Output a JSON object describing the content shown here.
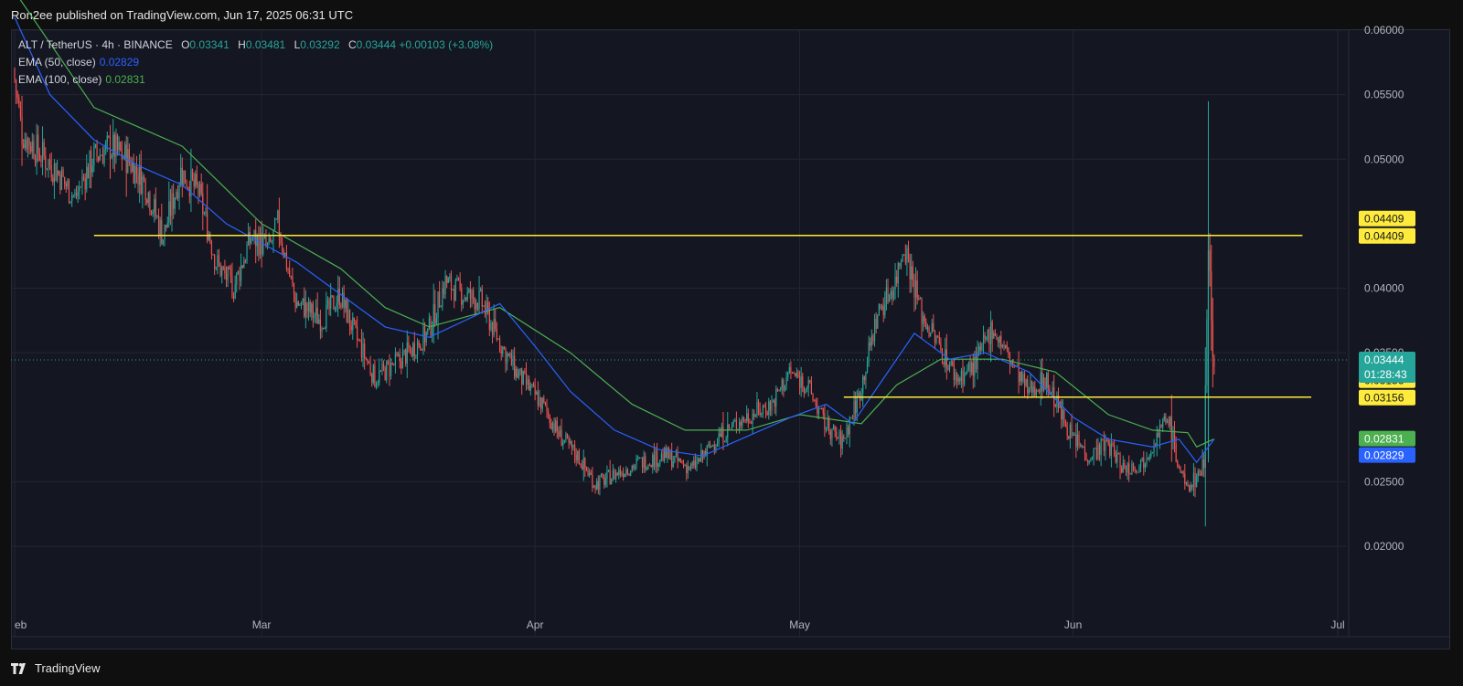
{
  "header": {
    "published": "Ron2ee published on TradingView.com, Jun 17, 2025 06:31 UTC"
  },
  "legend": {
    "symbol": "ALT / TetherUS · 4h · BINANCE",
    "o_label": "O",
    "o_value": "0.03341",
    "h_label": "H",
    "h_value": "0.03481",
    "l_label": "L",
    "l_value": "0.03292",
    "c_label": "C",
    "c_value": "0.03444",
    "change": "+0.00103 (+3.08%)",
    "ema50_label": "EMA (50, close)",
    "ema50_value": "0.02829",
    "ema100_label": "EMA (100, close)",
    "ema100_value": "0.02831"
  },
  "footer": {
    "brand": "TradingView"
  },
  "colors": {
    "up": "#26a69a",
    "down": "#ef5350",
    "ema50": "#2962ff",
    "ema100": "#4caf50",
    "level": "#ffeb3b",
    "grid": "#232632"
  },
  "chart_data": {
    "type": "candlestick",
    "ylim": [
      0.018,
      0.0605
    ],
    "y_ticks": [
      "0.06000",
      "0.05500",
      "0.05000",
      "0.04000",
      "0.03500",
      "0.02500",
      "0.02000"
    ],
    "x_ticks": [
      {
        "label": "eb",
        "date": "2025-02-01"
      },
      {
        "label": "Mar",
        "date": "2025-03-01"
      },
      {
        "label": "Apr",
        "date": "2025-04-01"
      },
      {
        "label": "May",
        "date": "2025-05-01"
      },
      {
        "label": "Jun",
        "date": "2025-06-01"
      },
      {
        "label": "Jul",
        "date": "2025-07-01"
      }
    ],
    "last_price": {
      "value": 0.03444,
      "label": "0.03444",
      "countdown": "01:28:43"
    },
    "levels": [
      {
        "value": 0.04409,
        "label": "0.04409",
        "from": "2025-02-10",
        "to": "2025-06-27"
      },
      {
        "value": 0.03156,
        "label": "0.03156",
        "from": "2025-05-06",
        "to": "2025-06-28"
      }
    ],
    "ema_labels": [
      {
        "name": "EMA (100, close)",
        "value": 0.02831,
        "label": "0.02831"
      },
      {
        "name": "EMA (50, close)",
        "value": 0.02829,
        "label": "0.02829"
      }
    ],
    "price_path": [
      {
        "date": "2025-02-01",
        "price": 0.057
      },
      {
        "date": "2025-02-02",
        "price": 0.052
      },
      {
        "date": "2025-02-04",
        "price": 0.0505
      },
      {
        "date": "2025-02-06",
        "price": 0.049
      },
      {
        "date": "2025-02-08",
        "price": 0.047
      },
      {
        "date": "2025-02-10",
        "price": 0.05
      },
      {
        "date": "2025-02-12",
        "price": 0.051
      },
      {
        "date": "2025-02-14",
        "price": 0.05
      },
      {
        "date": "2025-02-16",
        "price": 0.048
      },
      {
        "date": "2025-02-18",
        "price": 0.044
      },
      {
        "date": "2025-02-20",
        "price": 0.049
      },
      {
        "date": "2025-02-22",
        "price": 0.0475
      },
      {
        "date": "2025-02-24",
        "price": 0.042
      },
      {
        "date": "2025-02-26",
        "price": 0.04
      },
      {
        "date": "2025-02-28",
        "price": 0.044
      },
      {
        "date": "2025-03-02",
        "price": 0.043
      },
      {
        "date": "2025-03-03",
        "price": 0.045
      },
      {
        "date": "2025-03-05",
        "price": 0.039
      },
      {
        "date": "2025-03-08",
        "price": 0.0375
      },
      {
        "date": "2025-03-10",
        "price": 0.0395
      },
      {
        "date": "2025-03-12",
        "price": 0.036
      },
      {
        "date": "2025-03-14",
        "price": 0.033
      },
      {
        "date": "2025-03-17",
        "price": 0.0345
      },
      {
        "date": "2025-03-20",
        "price": 0.0365
      },
      {
        "date": "2025-03-22",
        "price": 0.0405
      },
      {
        "date": "2025-03-24",
        "price": 0.0395
      },
      {
        "date": "2025-03-26",
        "price": 0.039
      },
      {
        "date": "2025-03-28",
        "price": 0.036
      },
      {
        "date": "2025-03-30",
        "price": 0.0335
      },
      {
        "date": "2025-04-02",
        "price": 0.031
      },
      {
        "date": "2025-04-04",
        "price": 0.0285
      },
      {
        "date": "2025-04-06",
        "price": 0.027
      },
      {
        "date": "2025-04-08",
        "price": 0.0248
      },
      {
        "date": "2025-04-10",
        "price": 0.0255
      },
      {
        "date": "2025-04-13",
        "price": 0.0265
      },
      {
        "date": "2025-04-16",
        "price": 0.027
      },
      {
        "date": "2025-04-19",
        "price": 0.026
      },
      {
        "date": "2025-04-22",
        "price": 0.0285
      },
      {
        "date": "2025-04-25",
        "price": 0.03
      },
      {
        "date": "2025-04-28",
        "price": 0.031
      },
      {
        "date": "2025-04-30",
        "price": 0.0335
      },
      {
        "date": "2025-05-02",
        "price": 0.0325
      },
      {
        "date": "2025-05-04",
        "price": 0.0295
      },
      {
        "date": "2025-05-06",
        "price": 0.028
      },
      {
        "date": "2025-05-08",
        "price": 0.032
      },
      {
        "date": "2025-05-10",
        "price": 0.038
      },
      {
        "date": "2025-05-12",
        "price": 0.0405
      },
      {
        "date": "2025-05-13",
        "price": 0.0435
      },
      {
        "date": "2025-05-15",
        "price": 0.038
      },
      {
        "date": "2025-05-17",
        "price": 0.0355
      },
      {
        "date": "2025-05-19",
        "price": 0.033
      },
      {
        "date": "2025-05-21",
        "price": 0.034
      },
      {
        "date": "2025-05-23",
        "price": 0.037
      },
      {
        "date": "2025-05-25",
        "price": 0.0345
      },
      {
        "date": "2025-05-27",
        "price": 0.032
      },
      {
        "date": "2025-05-29",
        "price": 0.033
      },
      {
        "date": "2025-06-01",
        "price": 0.0285
      },
      {
        "date": "2025-06-03",
        "price": 0.027
      },
      {
        "date": "2025-06-05",
        "price": 0.028
      },
      {
        "date": "2025-06-07",
        "price": 0.026
      },
      {
        "date": "2025-06-09",
        "price": 0.0265
      },
      {
        "date": "2025-06-11",
        "price": 0.029
      },
      {
        "date": "2025-06-12",
        "price": 0.03
      },
      {
        "date": "2025-06-13",
        "price": 0.0265
      },
      {
        "date": "2025-06-14",
        "price": 0.0245
      },
      {
        "date": "2025-06-15",
        "price": 0.0252
      },
      {
        "date": "2025-06-16",
        "price": 0.0265
      },
      {
        "date": "2025-06-16T12:00",
        "price": 0.044
      },
      {
        "date": "2025-06-17",
        "price": 0.0344
      }
    ],
    "ema50": [
      {
        "date": "2025-02-01",
        "value": 0.061
      },
      {
        "date": "2025-02-05",
        "value": 0.055
      },
      {
        "date": "2025-02-10",
        "value": 0.0515
      },
      {
        "date": "2025-02-15",
        "value": 0.0495
      },
      {
        "date": "2025-02-20",
        "value": 0.048
      },
      {
        "date": "2025-02-25",
        "value": 0.045
      },
      {
        "date": "2025-03-01",
        "value": 0.0435
      },
      {
        "date": "2025-03-05",
        "value": 0.042
      },
      {
        "date": "2025-03-10",
        "value": 0.0395
      },
      {
        "date": "2025-03-15",
        "value": 0.037
      },
      {
        "date": "2025-03-20",
        "value": 0.0362
      },
      {
        "date": "2025-03-25",
        "value": 0.0378
      },
      {
        "date": "2025-03-28",
        "value": 0.0388
      },
      {
        "date": "2025-04-01",
        "value": 0.0355
      },
      {
        "date": "2025-04-05",
        "value": 0.032
      },
      {
        "date": "2025-04-10",
        "value": 0.029
      },
      {
        "date": "2025-04-15",
        "value": 0.0275
      },
      {
        "date": "2025-04-20",
        "value": 0.027
      },
      {
        "date": "2025-04-25",
        "value": 0.0285
      },
      {
        "date": "2025-04-30",
        "value": 0.03
      },
      {
        "date": "2025-05-04",
        "value": 0.031
      },
      {
        "date": "2025-05-07",
        "value": 0.0295
      },
      {
        "date": "2025-05-10",
        "value": 0.0325
      },
      {
        "date": "2025-05-14",
        "value": 0.0365
      },
      {
        "date": "2025-05-18",
        "value": 0.0345
      },
      {
        "date": "2025-05-22",
        "value": 0.035
      },
      {
        "date": "2025-05-27",
        "value": 0.0335
      },
      {
        "date": "2025-06-01",
        "value": 0.03
      },
      {
        "date": "2025-06-05",
        "value": 0.0283
      },
      {
        "date": "2025-06-10",
        "value": 0.0277
      },
      {
        "date": "2025-06-13",
        "value": 0.0283
      },
      {
        "date": "2025-06-15",
        "value": 0.0265
      },
      {
        "date": "2025-06-17",
        "value": 0.02829
      }
    ],
    "ema100": [
      {
        "date": "2025-02-01",
        "value": 0.063
      },
      {
        "date": "2025-02-10",
        "value": 0.054
      },
      {
        "date": "2025-02-20",
        "value": 0.051
      },
      {
        "date": "2025-03-01",
        "value": 0.045
      },
      {
        "date": "2025-03-10",
        "value": 0.0415
      },
      {
        "date": "2025-03-15",
        "value": 0.0385
      },
      {
        "date": "2025-03-20",
        "value": 0.037
      },
      {
        "date": "2025-03-28",
        "value": 0.0385
      },
      {
        "date": "2025-04-05",
        "value": 0.035
      },
      {
        "date": "2025-04-12",
        "value": 0.031
      },
      {
        "date": "2025-04-18",
        "value": 0.029
      },
      {
        "date": "2025-04-25",
        "value": 0.029
      },
      {
        "date": "2025-05-01",
        "value": 0.0302
      },
      {
        "date": "2025-05-08",
        "value": 0.0295
      },
      {
        "date": "2025-05-12",
        "value": 0.0325
      },
      {
        "date": "2025-05-17",
        "value": 0.0345
      },
      {
        "date": "2025-05-24",
        "value": 0.0345
      },
      {
        "date": "2025-05-30",
        "value": 0.0335
      },
      {
        "date": "2025-06-05",
        "value": 0.0302
      },
      {
        "date": "2025-06-10",
        "value": 0.029
      },
      {
        "date": "2025-06-14",
        "value": 0.0288
      },
      {
        "date": "2025-06-15",
        "value": 0.0277
      },
      {
        "date": "2025-06-17",
        "value": 0.02831
      }
    ]
  }
}
